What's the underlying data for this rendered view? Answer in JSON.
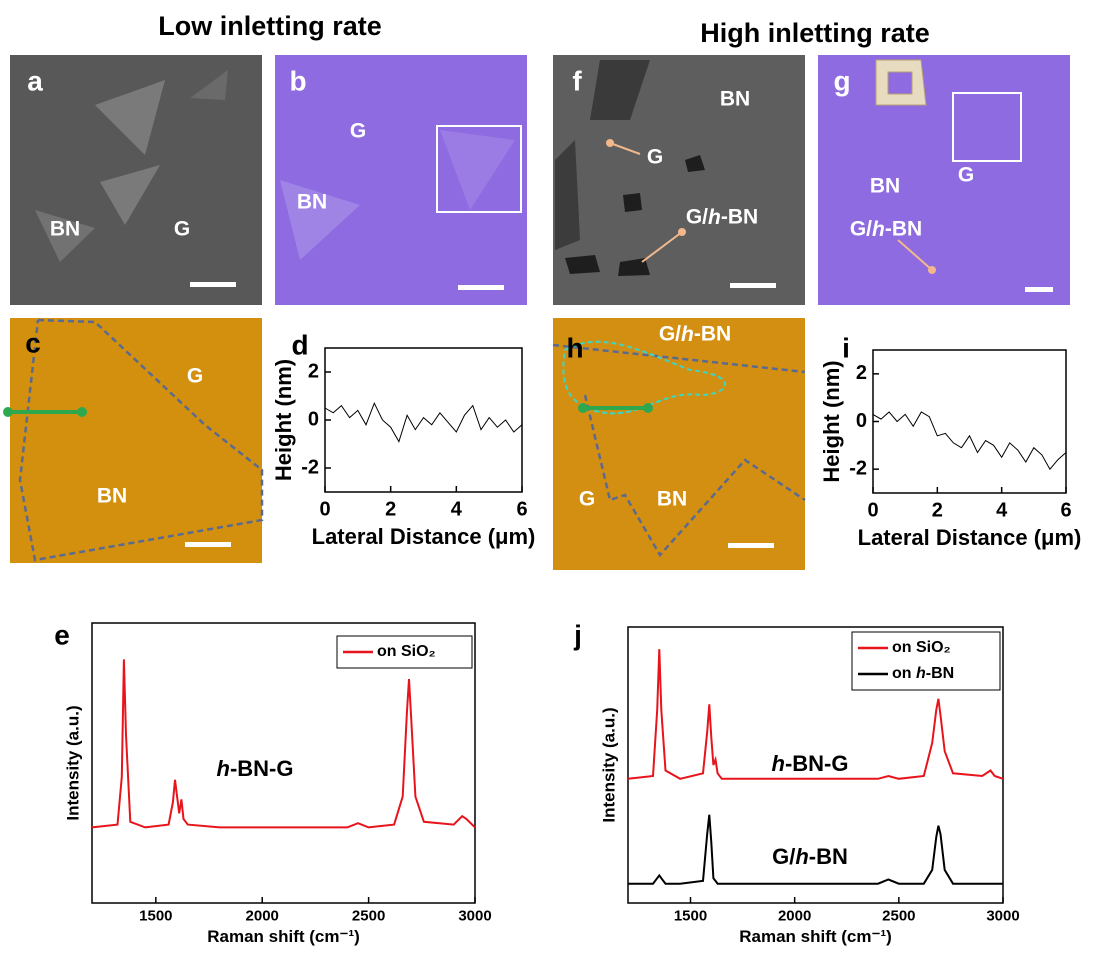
{
  "headings": {
    "low": "Low inletting rate",
    "high": "High inletting rate"
  },
  "panels": [
    {
      "label": "a",
      "texts": [
        "BN",
        "G"
      ]
    },
    {
      "label": "b",
      "texts": [
        "G",
        "BN"
      ]
    },
    {
      "label": "f",
      "texts": [
        "BN",
        "G",
        "G/h-BN"
      ]
    },
    {
      "label": "g",
      "texts": [
        "BN",
        "G",
        "G/h-BN"
      ]
    },
    {
      "label": "c",
      "texts": [
        "G",
        "BN"
      ]
    },
    {
      "label": "h",
      "texts": [
        "G/h-BN",
        "G",
        "BN"
      ]
    }
  ],
  "chart_data": [
    {
      "type": "line",
      "panel": "d",
      "xlabel": "Lateral Distance (μm)",
      "ylabel": "Height (nm)",
      "color": "#000000",
      "x": [
        0,
        0.25,
        0.5,
        0.75,
        1,
        1.25,
        1.5,
        1.75,
        2,
        2.25,
        2.5,
        2.75,
        3,
        3.25,
        3.5,
        3.75,
        4,
        4.25,
        4.5,
        4.75,
        5,
        5.25,
        5.5,
        5.75,
        6
      ],
      "values": [
        0.5,
        0.3,
        0.6,
        0.1,
        0.4,
        -0.2,
        0.7,
        0.0,
        -0.3,
        -0.9,
        0.2,
        -0.4,
        0.1,
        -0.2,
        0.3,
        -0.1,
        -0.5,
        0.2,
        0.6,
        -0.4,
        0.1,
        -0.3,
        0.0,
        -0.5,
        -0.2
      ],
      "xlim": [
        0,
        6
      ],
      "ylim": [
        -3,
        3
      ],
      "xticks": [
        0,
        2,
        4,
        6
      ],
      "yticks": [
        -2,
        0,
        2
      ]
    },
    {
      "type": "line",
      "panel": "i",
      "xlabel": "Lateral Distance (μm)",
      "ylabel": "Height (nm)",
      "color": "#000000",
      "x": [
        0,
        0.25,
        0.5,
        0.75,
        1,
        1.25,
        1.5,
        1.75,
        2,
        2.25,
        2.5,
        2.75,
        3,
        3.25,
        3.5,
        3.75,
        4,
        4.25,
        4.5,
        4.75,
        5,
        5.25,
        5.5,
        5.75,
        6
      ],
      "values": [
        0.3,
        0.1,
        0.4,
        0.0,
        0.3,
        -0.2,
        0.4,
        0.2,
        -0.6,
        -0.5,
        -0.9,
        -1.1,
        -0.6,
        -1.3,
        -0.8,
        -1.0,
        -1.5,
        -0.9,
        -1.2,
        -1.7,
        -1.1,
        -1.4,
        -2.0,
        -1.6,
        -1.3
      ],
      "xlim": [
        0,
        6
      ],
      "ylim": [
        -3,
        3
      ],
      "xticks": [
        0,
        2,
        4,
        6
      ],
      "yticks": [
        -2,
        0,
        2
      ]
    },
    {
      "type": "line",
      "panel": "e",
      "xlabel": "Raman shift (cm⁻¹)",
      "ylabel": "Intensity (a.u.)",
      "annotations": [
        "h-BN-G"
      ],
      "x": [
        1200,
        1320,
        1340,
        1350,
        1360,
        1380,
        1450,
        1560,
        1580,
        1590,
        1600,
        1610,
        1620,
        1630,
        1650,
        1800,
        2000,
        2200,
        2400,
        2450,
        2500,
        2620,
        2660,
        2680,
        2690,
        2700,
        2720,
        2760,
        2900,
        2940,
        2960,
        3000
      ],
      "series": [
        {
          "name": "on SiO₂",
          "color": "#e8141b",
          "values": [
            27,
            28,
            45,
            87,
            60,
            29,
            27,
            28,
            36,
            44,
            38,
            32,
            37,
            30,
            28,
            27,
            27,
            27,
            27,
            28.5,
            27,
            28,
            38,
            68,
            80,
            66,
            38,
            29,
            28,
            31,
            30,
            27
          ]
        }
      ],
      "xlim": [
        1200,
        3000
      ],
      "ylim": [
        0,
        100
      ],
      "xticks": [
        1500,
        2000,
        2500,
        3000
      ]
    },
    {
      "type": "line",
      "panel": "j",
      "xlabel": "Raman shift (cm⁻¹)",
      "ylabel": "Intensity (a.u.)",
      "annotations": [
        "h-BN-G",
        "G/h-BN"
      ],
      "x": [
        1200,
        1320,
        1340,
        1350,
        1360,
        1380,
        1450,
        1560,
        1580,
        1590,
        1600,
        1610,
        1620,
        1630,
        1650,
        1800,
        2000,
        2200,
        2400,
        2450,
        2500,
        2620,
        2660,
        2680,
        2690,
        2700,
        2720,
        2760,
        2900,
        2940,
        2960,
        3000
      ],
      "series": [
        {
          "name": "on SiO₂",
          "color": "#e8141b",
          "values": [
            45,
            46,
            70,
            92,
            70,
            48,
            45,
            47,
            62,
            72,
            60,
            50,
            52,
            47,
            45,
            45,
            45,
            45,
            45,
            46,
            45,
            46,
            58,
            70,
            74,
            68,
            55,
            47,
            46,
            48,
            46,
            45
          ]
        },
        {
          "name": "on h-BN",
          "color": "#000000",
          "values": [
            7,
            7,
            9,
            10,
            9,
            7,
            7,
            8,
            25,
            32,
            22,
            9,
            8,
            7,
            7,
            7,
            7,
            7,
            7,
            8.5,
            7,
            7,
            12,
            24,
            28,
            25,
            12,
            7,
            7,
            7,
            7,
            7
          ]
        }
      ],
      "xlim": [
        1200,
        3000
      ],
      "ylim": [
        0,
        100
      ],
      "xticks": [
        1500,
        2000,
        2500,
        3000
      ]
    }
  ]
}
